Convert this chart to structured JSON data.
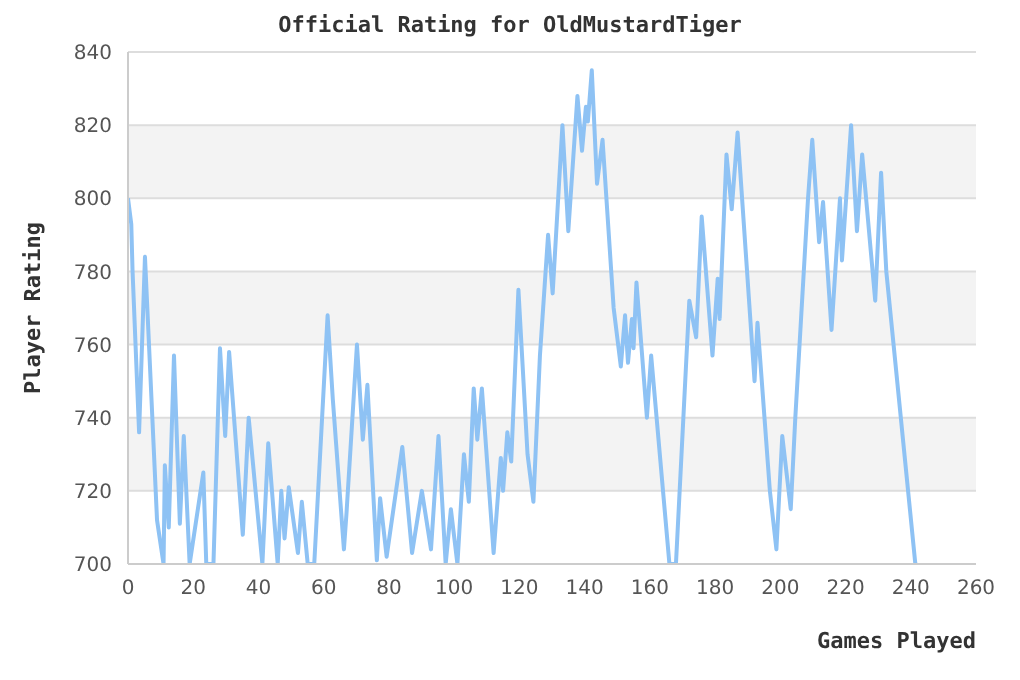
{
  "chart_data": {
    "type": "line",
    "title": "Official Rating for OldMustardTiger",
    "xlabel": "Games Played",
    "ylabel": "Player Rating",
    "x": [
      0,
      1,
      1.4,
      3.4,
      5.2,
      8.9,
      10.9,
      11.3,
      12.5,
      14.1,
      15.9,
      17.1,
      18.9,
      23.1,
      24,
      26.2,
      28.2,
      29.8,
      31,
      35.2,
      37,
      41.2,
      43,
      45.9,
      47,
      48,
      49.3,
      52.1,
      53.3,
      55.1,
      57.1,
      61.2,
      62.8,
      66.2,
      67,
      70.2,
      72,
      73.4,
      76.3,
      77.3,
      79.3,
      84.1,
      87.1,
      90.1,
      92.9,
      95.2,
      97.4,
      99,
      101,
      103,
      104.5,
      106,
      107.1,
      108.5,
      112.1,
      114.3,
      115,
      116.3,
      117.5,
      119.7,
      122.5,
      124.3,
      126.3,
      128.8,
      130.2,
      133.2,
      135,
      137.8,
      139.2,
      140.4,
      141,
      142.2,
      143.8,
      145.5,
      148.9,
      151.1,
      152.4,
      153.3,
      154.5,
      155,
      155.9,
      159.1,
      160.4,
      166,
      168,
      172.1,
      174.2,
      175.9,
      179.2,
      180.8,
      181.4,
      183.5,
      185.1,
      186.9,
      192.1,
      193,
      196.8,
      198.8,
      200.6,
      203.2,
      204.6,
      208.5,
      209.8,
      211.9,
      213.1,
      215.7,
      218.3,
      218.9,
      221.7,
      223.5,
      225.1,
      229.1,
      230.9,
      232.5,
      241.4,
      242
    ],
    "series": [
      {
        "color": "#8ec2f4",
        "values": [
          800,
          793,
          780,
          736,
          784,
          712,
          700,
          727,
          710,
          757,
          711,
          735,
          700,
          725,
          700,
          700,
          759,
          735,
          758,
          708,
          740,
          700,
          733,
          700,
          720,
          707,
          721,
          703,
          717,
          700,
          700,
          768,
          745,
          704,
          714,
          760,
          734,
          749,
          701,
          718,
          702,
          732,
          703,
          720,
          704,
          735,
          700,
          715,
          700,
          730,
          717,
          748,
          734,
          748,
          703,
          729,
          720,
          736,
          728,
          775,
          730,
          717,
          757,
          790,
          774,
          820,
          791,
          828,
          813,
          825,
          821,
          835,
          804,
          816,
          770,
          754,
          768,
          755,
          767,
          759,
          777,
          740,
          757,
          700,
          700,
          772,
          762,
          795,
          757,
          778,
          767,
          812,
          797,
          818,
          750,
          766,
          720,
          704,
          735,
          715,
          740,
          800,
          816,
          788,
          799,
          764,
          800,
          783,
          820,
          791,
          812,
          772,
          807,
          780,
          700,
          700
        ]
      }
    ],
    "xlim": [
      0,
      260
    ],
    "xticks": [
      0,
      20,
      40,
      60,
      80,
      100,
      120,
      140,
      160,
      180,
      200,
      220,
      240,
      260
    ],
    "ylim": [
      700,
      840
    ],
    "yticks": [
      700,
      720,
      740,
      760,
      780,
      800,
      820,
      840
    ],
    "grid": "y",
    "marker": "none",
    "line_style": "solid"
  }
}
